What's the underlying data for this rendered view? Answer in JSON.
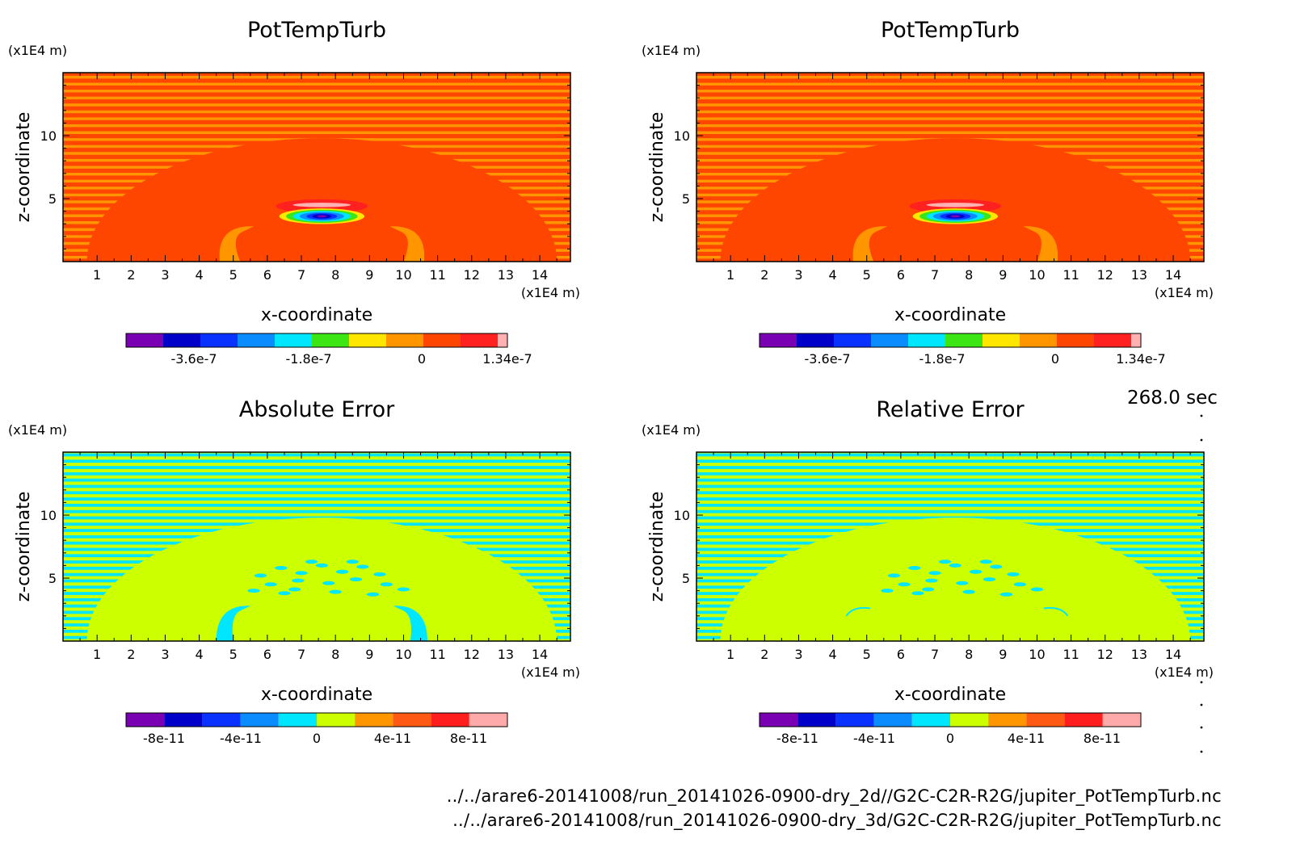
{
  "figure": {
    "timestamp": "268.0 sec",
    "source_files": [
      "../../arare6-20141008/run_20141026-0900-dry_2d//G2C-C2R-R2G/jupiter_PotTempTurb.nc",
      "../../arare6-20141008/run_20141026-0900-dry_3d/G2C-C2R-R2G/jupiter_PotTempTurb.nc"
    ]
  },
  "chart_data": [
    {
      "type": "heatmap",
      "title": "PotTempTurb",
      "xlabel": "x-coordinate",
      "ylabel": "z-coordinate",
      "x_unit": "(x1E4 m)",
      "y_unit": "(x1E4 m)",
      "xlim": [
        0,
        14.9
      ],
      "ylim": [
        0,
        15
      ],
      "x_ticks": [
        1,
        2,
        3,
        4,
        5,
        6,
        7,
        8,
        9,
        10,
        11,
        12,
        13,
        14
      ],
      "y_ticks": [
        5,
        10
      ],
      "colorbar": {
        "colors": [
          "#7a00b4",
          "#0000c8",
          "#0a32ff",
          "#0a8cff",
          "#00e6ff",
          "#3ce614",
          "#ffe600",
          "#ff9600",
          "#ff4600",
          "#ff2020",
          "#ffb0b0"
        ],
        "tick_labels": [
          "-3.6e-7",
          "-1.8e-7",
          "0",
          "1.34e-7"
        ]
      },
      "pattern": "field"
    },
    {
      "type": "heatmap",
      "title": "PotTempTurb",
      "xlabel": "x-coordinate",
      "ylabel": "z-coordinate",
      "x_unit": "(x1E4 m)",
      "y_unit": "(x1E4 m)",
      "xlim": [
        0,
        14.9
      ],
      "ylim": [
        0,
        15
      ],
      "x_ticks": [
        1,
        2,
        3,
        4,
        5,
        6,
        7,
        8,
        9,
        10,
        11,
        12,
        13,
        14
      ],
      "y_ticks": [
        5,
        10
      ],
      "colorbar": {
        "colors": [
          "#7a00b4",
          "#0000c8",
          "#0a32ff",
          "#0a8cff",
          "#00e6ff",
          "#3ce614",
          "#ffe600",
          "#ff9600",
          "#ff4600",
          "#ff2020",
          "#ffb0b0"
        ],
        "tick_labels": [
          "-3.6e-7",
          "-1.8e-7",
          "0",
          "1.34e-7"
        ]
      },
      "pattern": "field"
    },
    {
      "type": "heatmap",
      "title": "Absolute Error",
      "xlabel": "x-coordinate",
      "ylabel": "z-coordinate",
      "x_unit": "(x1E4 m)",
      "y_unit": "(x1E4 m)",
      "xlim": [
        0,
        14.9
      ],
      "ylim": [
        0,
        15
      ],
      "x_ticks": [
        1,
        2,
        3,
        4,
        5,
        6,
        7,
        8,
        9,
        10,
        11,
        12,
        13,
        14
      ],
      "y_ticks": [
        5,
        10
      ],
      "colorbar": {
        "colors": [
          "#7a00b4",
          "#0000c8",
          "#0a32ff",
          "#0a8cff",
          "#00e6ff",
          "#ccff00",
          "#ff9600",
          "#ff5a14",
          "#ff1e1e",
          "#ffaaaa"
        ],
        "tick_labels": [
          "-8e-11",
          "-4e-11",
          "0",
          "4e-11",
          "8e-11"
        ]
      },
      "pattern": "error"
    },
    {
      "type": "heatmap",
      "title": "Relative Error",
      "xlabel": "x-coordinate",
      "ylabel": "z-coordinate",
      "x_unit": "(x1E4 m)",
      "y_unit": "(x1E4 m)",
      "xlim": [
        0,
        14.9
      ],
      "ylim": [
        0,
        15
      ],
      "x_ticks": [
        1,
        2,
        3,
        4,
        5,
        6,
        7,
        8,
        9,
        10,
        11,
        12,
        13,
        14
      ],
      "y_ticks": [
        5,
        10
      ],
      "colorbar": {
        "colors": [
          "#7a00b4",
          "#0000c8",
          "#0a32ff",
          "#0a8cff",
          "#00e6ff",
          "#ccff00",
          "#ff9600",
          "#ff5a14",
          "#ff1e1e",
          "#ffaaaa"
        ],
        "tick_labels": [
          "-8e-11",
          "-4e-11",
          "0",
          "4e-11",
          "8e-11"
        ]
      },
      "pattern": "error"
    }
  ]
}
